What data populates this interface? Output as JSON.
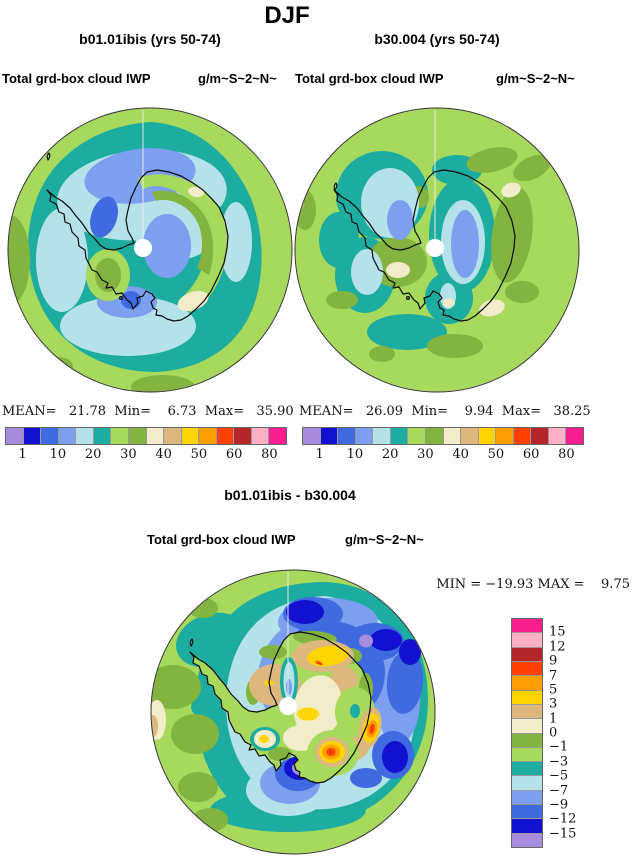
{
  "title": "DJF",
  "palette": {
    "c1": "#a78bdc",
    "c2": "#1111cf",
    "c3": "#3f6ae0",
    "c4": "#7d9ff0",
    "c5": "#b5e2e9",
    "c6": "#1cada0",
    "c7": "#a6d95c",
    "c8": "#83b440",
    "c9": "#f2ecca",
    "c10": "#ddb87e",
    "c11": "#ffd400",
    "c12": "#ff9e00",
    "c13": "#ff4000",
    "c14": "#b3262a",
    "c15": "#ffb0c6",
    "c16": "#fa1f8e"
  },
  "panels": {
    "left": {
      "title": "b01.01ibis (yrs 50-74)",
      "field": "Total grd-box cloud IWP",
      "units": "g/m~S~2~N~",
      "stats": "MEAN=   21.78  Min=    6.73  Max=   35.90"
    },
    "right": {
      "title": "b30.004 (yrs 50-74)",
      "field": "Total grd-box cloud IWP",
      "units": "g/m~S~2~N~",
      "stats": "MEAN=   26.09  Min=    9.94  Max=   38.25"
    },
    "diff": {
      "title": "b01.01ibis - b30.004",
      "field": "Total grd-box cloud IWP",
      "units": "g/m~S~2~N~",
      "stats": "MIN = −19.93 MAX =    9.75"
    }
  },
  "colorbar_top": {
    "colors": [
      "#a78bdc",
      "#1111cf",
      "#3f6ae0",
      "#7d9ff0",
      "#b5e2e9",
      "#1cada0",
      "#a6d95c",
      "#83b440",
      "#f2ecca",
      "#ddb87e",
      "#ffd400",
      "#ff9e00",
      "#ff4000",
      "#b3262a",
      "#ffb0c6",
      "#fa1f8e"
    ],
    "tick_labels": [
      "1",
      "10",
      "20",
      "30",
      "40",
      "50",
      "60",
      "80"
    ],
    "tick_boundaries": [
      1,
      3,
      5,
      7,
      9,
      11,
      13,
      15
    ]
  },
  "colorbar_diff": {
    "colors": [
      "#fa1f8e",
      "#ffb0c6",
      "#b3262a",
      "#ff4000",
      "#ff9e00",
      "#ffd400",
      "#ddb87e",
      "#f2ecca",
      "#83b440",
      "#a6d95c",
      "#1cada0",
      "#b5e2e9",
      "#7d9ff0",
      "#3f6ae0",
      "#1111cf",
      "#a78bdc"
    ],
    "labels": [
      "15",
      "12",
      "9",
      "7",
      "5",
      "3",
      "1",
      "0",
      "−1",
      "−3",
      "−5",
      "−7",
      "−9",
      "−12",
      "−15"
    ]
  },
  "chart_data": [
    {
      "type": "heatmap",
      "subtype": "filled-contour-map",
      "projection": "south-polar-stereographic",
      "season": "DJF",
      "title": "b01.01ibis (yrs 50-74)",
      "variable": "Total grd-box cloud IWP",
      "units": "g/m~S~2~N~",
      "stats": {
        "mean": 21.78,
        "min": 6.73,
        "max": 35.9
      },
      "colorbar_tick_labels": [
        1,
        10,
        20,
        30,
        40,
        50,
        60,
        80
      ],
      "n_color_bins": 16,
      "legend_position": "bottom"
    },
    {
      "type": "heatmap",
      "subtype": "filled-contour-map",
      "projection": "south-polar-stereographic",
      "season": "DJF",
      "title": "b30.004 (yrs 50-74)",
      "variable": "Total grd-box cloud IWP",
      "units": "g/m~S~2~N~",
      "stats": {
        "mean": 26.09,
        "min": 9.94,
        "max": 38.25
      },
      "colorbar_tick_labels": [
        1,
        10,
        20,
        30,
        40,
        50,
        60,
        80
      ],
      "n_color_bins": 16,
      "legend_position": "bottom"
    },
    {
      "type": "heatmap",
      "subtype": "filled-contour-difference-map",
      "projection": "south-polar-stereographic",
      "season": "DJF",
      "title": "b01.01ibis - b30.004",
      "variable": "Total grd-box cloud IWP",
      "units": "g/m~S~2~N~",
      "stats": {
        "min": -19.93,
        "max": 9.75
      },
      "colorbar_tick_labels": [
        15,
        12,
        9,
        7,
        5,
        3,
        1,
        0,
        -1,
        -3,
        -5,
        -7,
        -9,
        -12,
        -15
      ],
      "n_color_bins": 16,
      "legend_position": "right"
    }
  ]
}
